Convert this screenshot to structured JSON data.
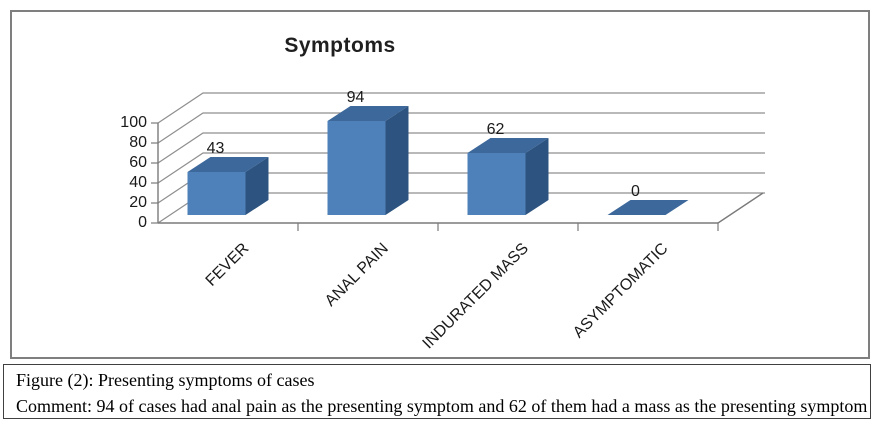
{
  "figure": {
    "caption_line1": "Figure (2): Presenting symptoms of cases",
    "caption_line2": "Comment: 94 of cases had anal pain as the presenting symptom and 62 of them had a mass as the presenting symptom"
  },
  "chart_data": {
    "type": "bar",
    "subtype": "3d-column",
    "title": "Symptoms",
    "categories": [
      "FEVER",
      "ANAL PAIN",
      "INDURATED MASS",
      "ASYMPTOMATIC"
    ],
    "values": [
      43,
      94,
      62,
      0
    ],
    "yticks": [
      0,
      20,
      40,
      60,
      80,
      100
    ],
    "ylim": [
      0,
      100
    ],
    "xlabel": "",
    "ylabel": "",
    "grid": true,
    "legend": "none",
    "colors": {
      "bar_front": "#4e80ba",
      "bar_top": "#3d689b",
      "bar_side": "#2d5480",
      "gridline": "#8f8f8f",
      "axis": "#7a7a7a",
      "frame_border": "#7f7f7f",
      "caption_border": "#404040"
    }
  }
}
